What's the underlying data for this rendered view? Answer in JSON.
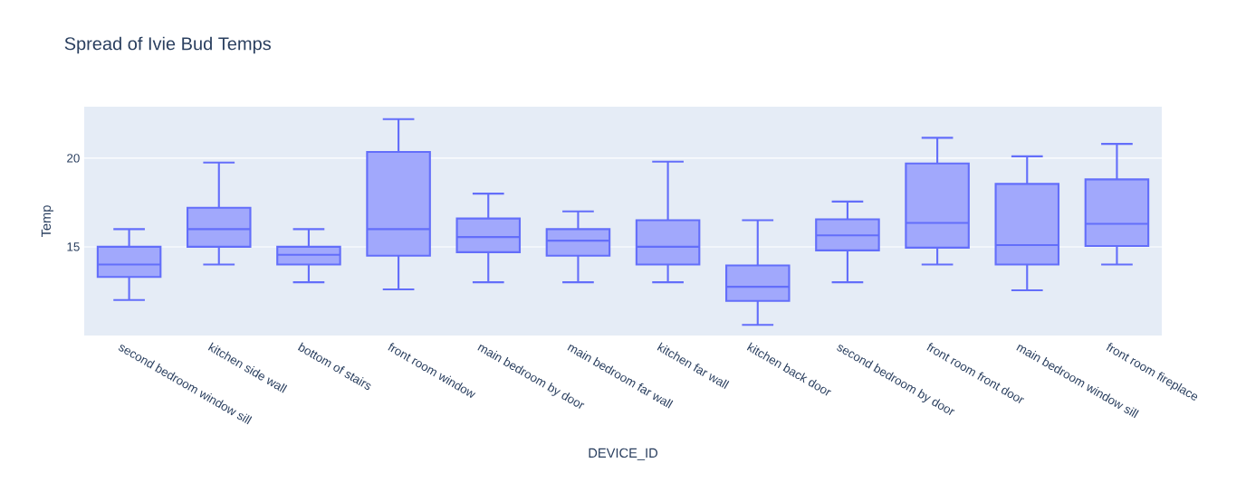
{
  "chart_data": {
    "type": "box",
    "title": "Spread of Ivie Bud Temps",
    "xlabel": "DEVICE_ID",
    "ylabel": "Temp",
    "categories": [
      "second bedroom window sill",
      "kitchen side wall",
      "bottom of stairs",
      "front room window",
      "main bedroom by door",
      "main bedroom far wall",
      "kitchen far wall",
      "kitchen back door",
      "second bedroom by door",
      "front room front door",
      "main bedroom window sill",
      "front room fireplace"
    ],
    "boxes": [
      {
        "low": 12,
        "q1": 13.3,
        "median": 14,
        "q3": 15,
        "high": 16
      },
      {
        "low": 14,
        "q1": 15,
        "median": 16,
        "q3": 17.2,
        "high": 19.75
      },
      {
        "low": 13,
        "q1": 14,
        "median": 14.55,
        "q3": 15,
        "high": 16
      },
      {
        "low": 12.6,
        "q1": 14.5,
        "median": 16,
        "q3": 20.35,
        "high": 22.2
      },
      {
        "low": 13,
        "q1": 14.7,
        "median": 15.55,
        "q3": 16.6,
        "high": 18
      },
      {
        "low": 13,
        "q1": 14.5,
        "median": 15.35,
        "q3": 16,
        "high": 17
      },
      {
        "low": 13,
        "q1": 14,
        "median": 15,
        "q3": 16.5,
        "high": 19.8
      },
      {
        "low": 10.6,
        "q1": 11.95,
        "median": 12.75,
        "q3": 13.95,
        "high": 16.5
      },
      {
        "low": 13,
        "q1": 14.8,
        "median": 15.65,
        "q3": 16.55,
        "high": 17.55
      },
      {
        "low": 14,
        "q1": 14.95,
        "median": 16.35,
        "q3": 19.7,
        "high": 21.15
      },
      {
        "low": 12.55,
        "q1": 14,
        "median": 15.1,
        "q3": 18.55,
        "high": 20.1
      },
      {
        "low": 14,
        "q1": 15.05,
        "median": 16.3,
        "q3": 18.8,
        "high": 20.8
      }
    ],
    "color": "#636efa",
    "ylim": [
      10,
      22.9
    ],
    "yticks": [
      15,
      20
    ],
    "grid": "y"
  }
}
